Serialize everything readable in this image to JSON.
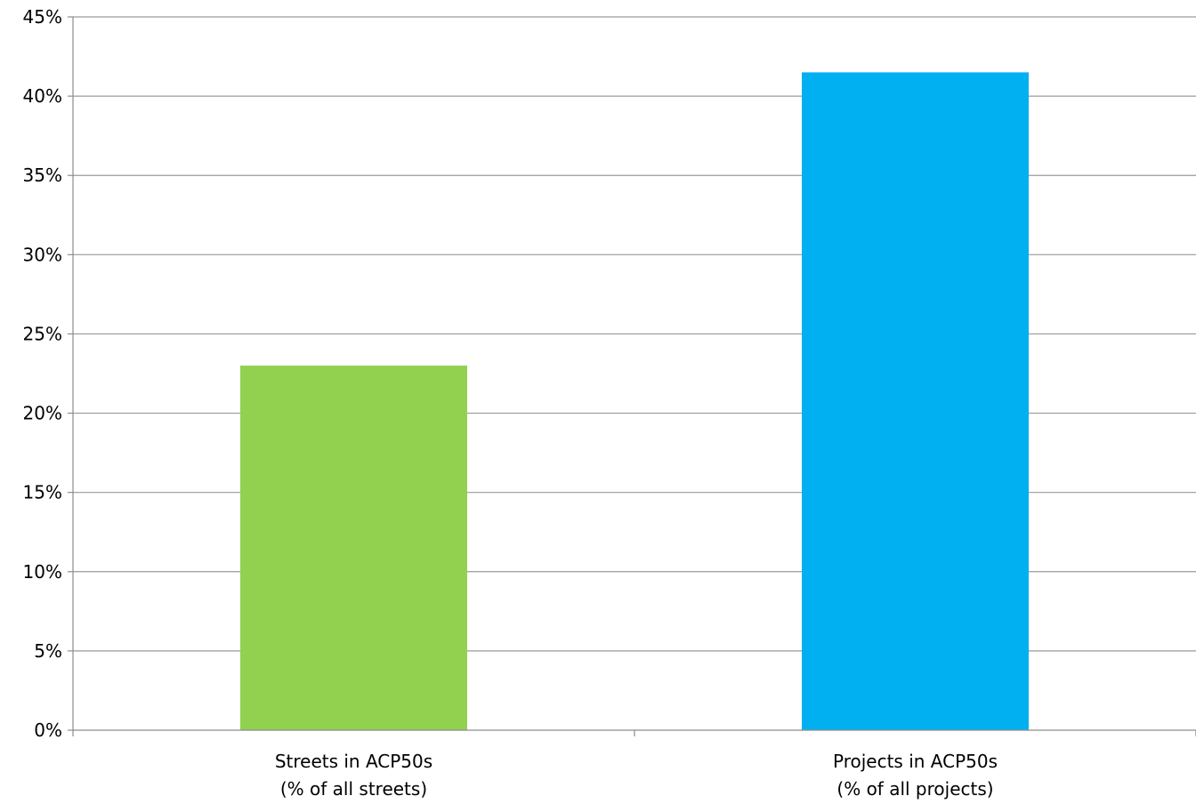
{
  "chart_data": {
    "type": "bar",
    "categories": [
      {
        "line1": "Streets in ACP50s",
        "line2": "(% of all streets)"
      },
      {
        "line1": "Projects in ACP50s",
        "line2": "(% of all projects)"
      }
    ],
    "values": [
      23.0,
      41.5
    ],
    "bar_colors": [
      "#92d050",
      "#00b0f0"
    ],
    "ylim": [
      0,
      45
    ],
    "yticks": [
      0,
      5,
      10,
      15,
      20,
      25,
      30,
      35,
      40,
      45
    ],
    "ytick_labels": [
      "0%",
      "5%",
      "10%",
      "15%",
      "20%",
      "25%",
      "30%",
      "35%",
      "40%",
      "45%"
    ],
    "grid": true,
    "legend": "none"
  }
}
